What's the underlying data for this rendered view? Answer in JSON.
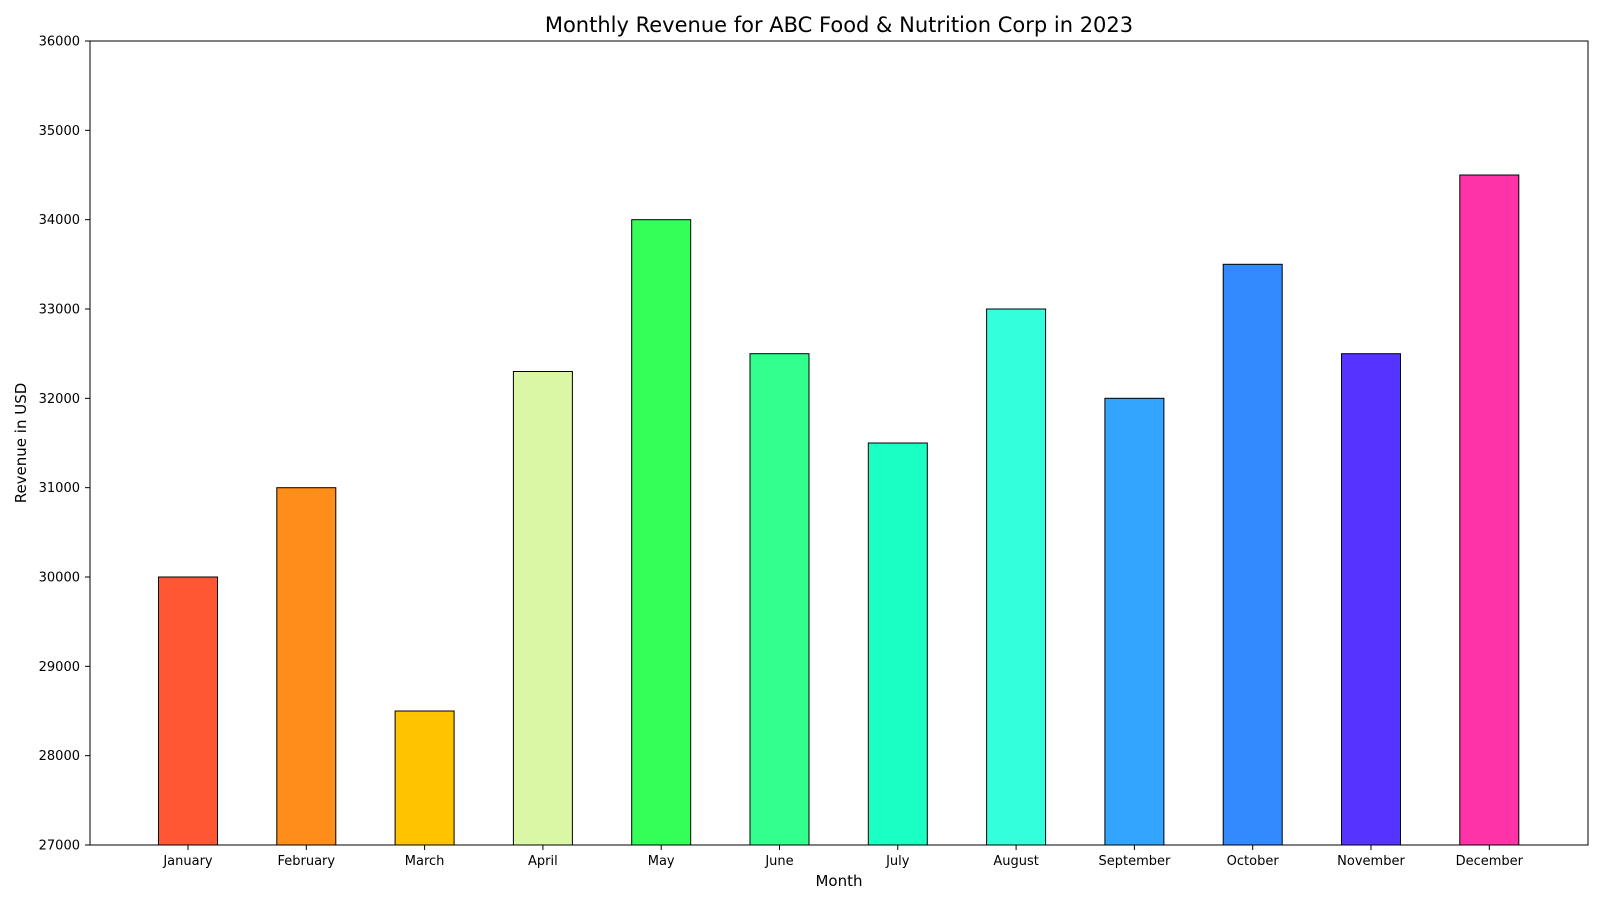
{
  "chart_data": {
    "type": "bar",
    "title": "Monthly Revenue for ABC Food & Nutrition Corp in 2023",
    "xlabel": "Month",
    "ylabel": "Revenue in USD",
    "ylim": [
      27000,
      36000
    ],
    "yticks": [
      27000,
      28000,
      29000,
      30000,
      31000,
      32000,
      33000,
      34000,
      35000,
      36000
    ],
    "grid": false,
    "categories": [
      "January",
      "February",
      "March",
      "April",
      "May",
      "June",
      "July",
      "August",
      "September",
      "October",
      "November",
      "December"
    ],
    "values": [
      30000,
      31000,
      28500,
      32300,
      34000,
      32500,
      31500,
      33000,
      32000,
      33500,
      32500,
      34500
    ],
    "colors": [
      "#ff5733",
      "#ff8d1a",
      "#ffc300",
      "#daf7a6",
      "#33ff57",
      "#33ff8d",
      "#1affc3",
      "#33ffdd",
      "#33a5ff",
      "#338aff",
      "#5733ff",
      "#ff33a8"
    ],
    "bar_edge_color": "#000000"
  }
}
